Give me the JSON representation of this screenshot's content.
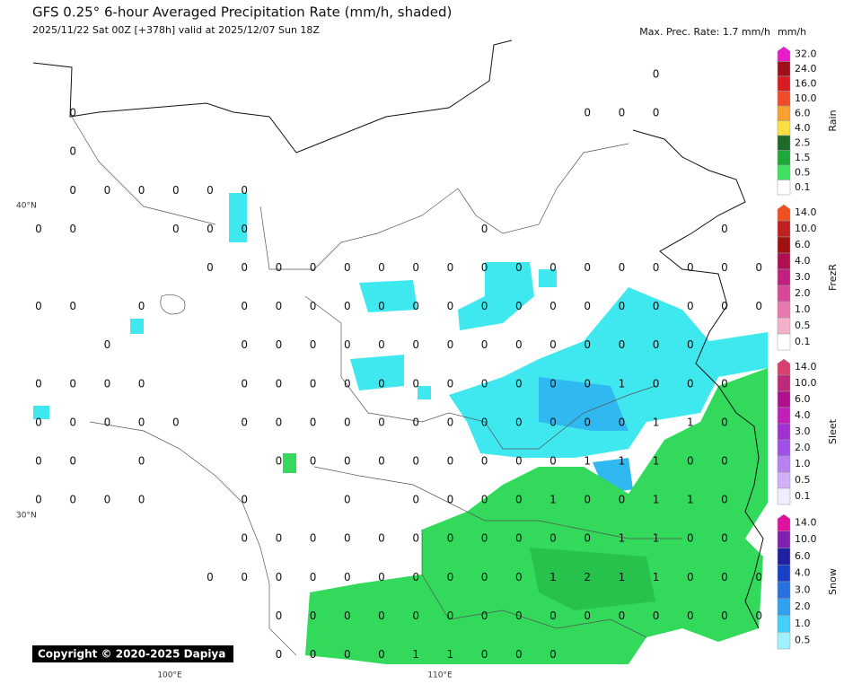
{
  "header": {
    "title": "GFS 0.25° 6-hour Averaged Precipitation Rate (mm/h, shaded)",
    "subtitle": "2025/11/22 Sat 00Z [+378h] valid at 2025/12/07 Sun 18Z",
    "max_rate": "Max. Prec. Rate: 1.7 mm/h",
    "unit": "mm/h"
  },
  "axes": {
    "lat_labels": [
      "40°N",
      "30°N"
    ],
    "lon_labels": [
      "100°E",
      "110°E"
    ]
  },
  "copyright": "Copyright © 2020-2025 Dapiya",
  "colorbars": [
    {
      "name": "Rain",
      "labels": [
        "32.0",
        "24.0",
        "16.0",
        "10.0",
        "6.0",
        "4.0",
        "2.5",
        "1.5",
        "0.5",
        "0.1"
      ],
      "colors": [
        "#e81cc8",
        "#a0101c",
        "#d81c24",
        "#f04a2a",
        "#f8a030",
        "#f8e040",
        "#1e6a28",
        "#1fa83a",
        "#40e060",
        "#ffffff"
      ]
    },
    {
      "name": "FrezR",
      "labels": [
        "14.0",
        "10.0",
        "6.0",
        "4.0",
        "3.0",
        "2.0",
        "1.0",
        "0.5",
        "0.1"
      ],
      "colors": [
        "#f05020",
        "#c02020",
        "#a01010",
        "#b01050",
        "#c02080",
        "#d84898",
        "#e878b0",
        "#f4b0cc",
        "#ffffff"
      ]
    },
    {
      "name": "Sleet",
      "labels": [
        "14.0",
        "10.0",
        "6.0",
        "4.0",
        "3.0",
        "2.0",
        "1.0",
        "0.5",
        "0.1"
      ],
      "colors": [
        "#d84070",
        "#c02878",
        "#b0108c",
        "#c020b8",
        "#a030d0",
        "#a050e8",
        "#b880f0",
        "#d0b0f8",
        "#eeeeff"
      ]
    },
    {
      "name": "Snow",
      "labels": [
        "14.0",
        "10.0",
        "6.0",
        "4.0",
        "3.0",
        "2.0",
        "1.0",
        "0.5"
      ],
      "colors": [
        "#e010a0",
        "#8020b0",
        "#2020a0",
        "#1840c8",
        "#2870e0",
        "#30a0f0",
        "#40d0f8",
        "#a0f0ff"
      ]
    }
  ],
  "station_values": [
    [
      null,
      null,
      null,
      null,
      null,
      null,
      null,
      null,
      null,
      null,
      null,
      null,
      null,
      null,
      null,
      null,
      null,
      null,
      0,
      null,
      null,
      null
    ],
    [
      null,
      0,
      null,
      null,
      null,
      null,
      null,
      null,
      null,
      null,
      null,
      null,
      null,
      null,
      null,
      null,
      0,
      0,
      0,
      null,
      null,
      null
    ],
    [
      null,
      0,
      null,
      null,
      null,
      null,
      null,
      null,
      null,
      null,
      null,
      null,
      null,
      null,
      null,
      null,
      null,
      null,
      null,
      null,
      null,
      null
    ],
    [
      null,
      0,
      0,
      0,
      0,
      0,
      0,
      null,
      null,
      null,
      null,
      null,
      null,
      null,
      null,
      null,
      null,
      null,
      null,
      null,
      null,
      null
    ],
    [
      0,
      0,
      null,
      null,
      0,
      0,
      0,
      null,
      null,
      null,
      null,
      null,
      null,
      0,
      null,
      null,
      null,
      null,
      null,
      null,
      0,
      null
    ],
    [
      null,
      null,
      null,
      null,
      null,
      0,
      0,
      0,
      0,
      0,
      0,
      0,
      0,
      0,
      0,
      0,
      0,
      0,
      0,
      0,
      0,
      0
    ],
    [
      0,
      0,
      null,
      0,
      null,
      null,
      0,
      0,
      0,
      0,
      0,
      0,
      0,
      0,
      0,
      0,
      0,
      0,
      0,
      0,
      0,
      0
    ],
    [
      null,
      null,
      0,
      null,
      null,
      null,
      0,
      0,
      0,
      0,
      0,
      0,
      0,
      0,
      0,
      0,
      0,
      0,
      0,
      0,
      null,
      null
    ],
    [
      0,
      0,
      0,
      0,
      null,
      null,
      0,
      0,
      0,
      0,
      0,
      0,
      0,
      0,
      0,
      0,
      0,
      1,
      0,
      0,
      0,
      null
    ],
    [
      0,
      0,
      0,
      0,
      0,
      null,
      0,
      0,
      0,
      0,
      0,
      0,
      0,
      0,
      0,
      0,
      0,
      0,
      1,
      1,
      0,
      null
    ],
    [
      0,
      0,
      null,
      0,
      null,
      null,
      null,
      0,
      0,
      0,
      0,
      0,
      0,
      0,
      0,
      0,
      1,
      1,
      1,
      0,
      0,
      null
    ],
    [
      0,
      0,
      0,
      0,
      null,
      null,
      0,
      null,
      null,
      0,
      null,
      0,
      0,
      0,
      0,
      1,
      0,
      0,
      1,
      1,
      0,
      null
    ],
    [
      null,
      null,
      null,
      null,
      null,
      null,
      0,
      0,
      0,
      0,
      0,
      0,
      0,
      0,
      0,
      0,
      0,
      1,
      1,
      0,
      0,
      null
    ],
    [
      null,
      null,
      null,
      null,
      null,
      0,
      0,
      0,
      0,
      0,
      0,
      0,
      0,
      0,
      0,
      1,
      2,
      1,
      1,
      0,
      0,
      0
    ],
    [
      null,
      null,
      null,
      null,
      null,
      null,
      null,
      0,
      0,
      0,
      0,
      0,
      0,
      0,
      0,
      0,
      0,
      0,
      0,
      0,
      0,
      0
    ],
    [
      null,
      null,
      null,
      null,
      null,
      null,
      null,
      0,
      0,
      0,
      0,
      1,
      1,
      0,
      0,
      0,
      null,
      null,
      null,
      null,
      null,
      null
    ]
  ]
}
